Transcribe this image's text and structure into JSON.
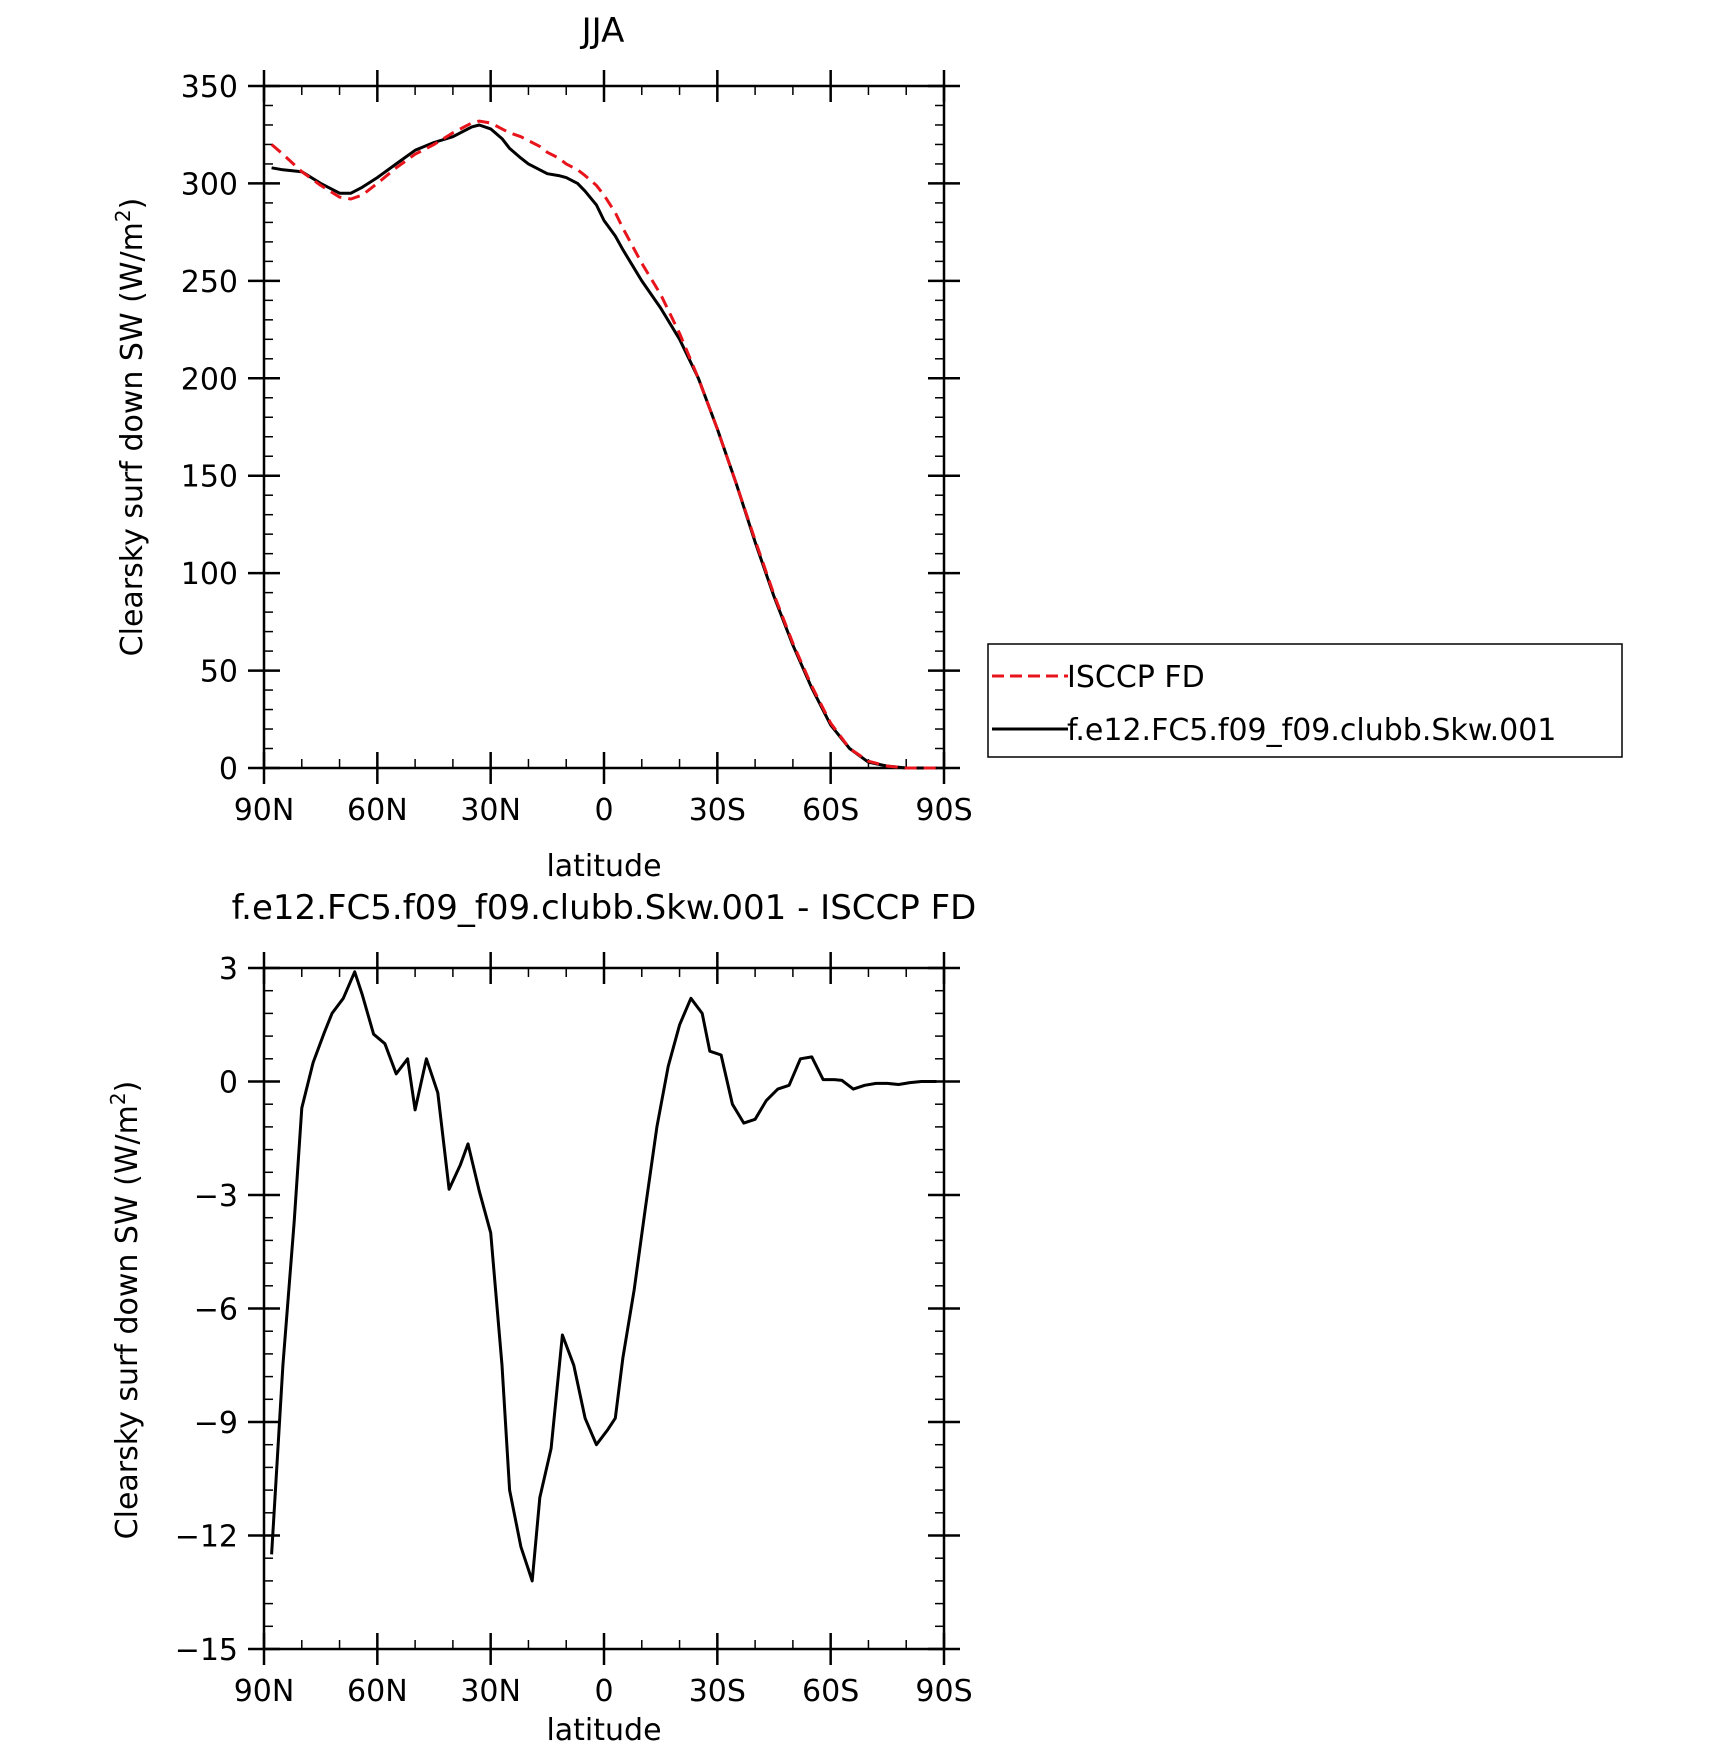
{
  "chart_data": [
    {
      "type": "line",
      "title": "JJA",
      "xlabel": "latitude",
      "ylabel": "Clearsky surf down SW (W/m²)",
      "ylabel_main": "Clearsky surf down SW (W/m",
      "ylabel_sup": "2",
      "ylabel_end": ")",
      "xlim": [
        90,
        -90
      ],
      "ylim": [
        0,
        350
      ],
      "xticks": [
        90,
        60,
        30,
        0,
        -30,
        -60,
        -90
      ],
      "xtick_labels": [
        "90N",
        "60N",
        "30N",
        "0",
        "30S",
        "60S",
        "90S"
      ],
      "yticks": [
        0,
        50,
        100,
        150,
        200,
        250,
        300,
        350
      ],
      "ytick_labels": [
        "0",
        "50",
        "100",
        "150",
        "200",
        "250",
        "300",
        "350"
      ],
      "legend": "right",
      "legend_entries": [
        "ISCCP FD",
        "f.e12.FC5.f09_f09.clubb.Skw.001"
      ],
      "series": [
        {
          "name": "ISCCP FD",
          "color": "#e8141b",
          "dash": true,
          "x": [
            88,
            85,
            80,
            75,
            70,
            67,
            64,
            60,
            55,
            50,
            45,
            40,
            35,
            33,
            30,
            27,
            25,
            22,
            20,
            17,
            15,
            12,
            10,
            7,
            5,
            2,
            0,
            -3,
            -5,
            -10,
            -15,
            -20,
            -25,
            -30,
            -35,
            -40,
            -45,
            -50,
            -55,
            -60,
            -65,
            -70,
            -75,
            -80,
            -85,
            -88
          ],
          "y": [
            320,
            315,
            306,
            299,
            293,
            292,
            294,
            300,
            308,
            315,
            320,
            326,
            331,
            332,
            331,
            328,
            326,
            324,
            322,
            319,
            316,
            313,
            310,
            307,
            304,
            299,
            294,
            285,
            277,
            259,
            243,
            223,
            200,
            174,
            146,
            117,
            89,
            64,
            42,
            23,
            10,
            3.5,
            1,
            0,
            0,
            0
          ]
        },
        {
          "name": "f.e12.FC5.f09_f09.clubb.Skw.001",
          "color": "#000000",
          "dash": false,
          "x": [
            88,
            85,
            80,
            75,
            70,
            67,
            64,
            60,
            55,
            50,
            45,
            40,
            35,
            33,
            30,
            27,
            25,
            22,
            20,
            17,
            15,
            12,
            10,
            7,
            5,
            2,
            0,
            -3,
            -5,
            -10,
            -15,
            -20,
            -25,
            -30,
            -35,
            -40,
            -45,
            -50,
            -55,
            -60,
            -65,
            -70,
            -75,
            -80,
            -85,
            -88
          ],
          "y": [
            308,
            307,
            306,
            300,
            295,
            295,
            298,
            303,
            310,
            317,
            321,
            324,
            329,
            330,
            328,
            323,
            318,
            313,
            310,
            307,
            305,
            304,
            303,
            300,
            296,
            289,
            281,
            273,
            266,
            250,
            236,
            220,
            200,
            174,
            146,
            116,
            88,
            63,
            41,
            22,
            10,
            3,
            1,
            0,
            0,
            0
          ]
        }
      ]
    },
    {
      "type": "line",
      "title": "f.e12.FC5.f09_f09.clubb.Skw.001 - ISCCP FD",
      "xlabel": "latitude",
      "ylabel": "Clearsky surf down SW (W/m²)",
      "ylabel_main": "Clearsky surf down SW (W/m",
      "ylabel_sup": "2",
      "ylabel_end": ")",
      "xlim": [
        90,
        -90
      ],
      "ylim": [
        -15,
        3
      ],
      "xticks": [
        90,
        60,
        30,
        0,
        -30,
        -60,
        -90
      ],
      "xtick_labels": [
        "90N",
        "60N",
        "30N",
        "0",
        "30S",
        "60S",
        "90S"
      ],
      "yticks": [
        -15,
        -12,
        -9,
        -6,
        -3,
        0,
        3
      ],
      "ytick_labels": [
        "−15",
        "−12",
        "−9",
        "−6",
        "−3",
        "0",
        "3"
      ],
      "series": [
        {
          "color": "#000000",
          "x": [
            88,
            85,
            82,
            80,
            77,
            74,
            72,
            69,
            66,
            64,
            61,
            58,
            55,
            52,
            50,
            47,
            44,
            41,
            38,
            36,
            33,
            30,
            27,
            25,
            22,
            19,
            17,
            14,
            11,
            8,
            5,
            2,
            -1,
            -3,
            -5,
            -8,
            -11,
            -14,
            -17,
            -20,
            -23,
            -26,
            -28,
            -31,
            -34,
            -37,
            -40,
            -43,
            -46,
            -49,
            -52,
            -55,
            -58,
            -61,
            -63,
            -66,
            -69,
            -72,
            -75,
            -78,
            -81,
            -84,
            -88
          ],
          "y": [
            -12.5,
            -7.5,
            -3.7,
            -0.7,
            0.5,
            1.3,
            1.8,
            2.2,
            2.9,
            2.3,
            1.25,
            1.0,
            0.2,
            0.6,
            -0.75,
            0.6,
            -0.3,
            -2.85,
            -2.2,
            -1.65,
            -2.9,
            -4.0,
            -7.5,
            -10.8,
            -12.3,
            -13.2,
            -11.0,
            -9.7,
            -6.7,
            -7.5,
            -8.9,
            -9.6,
            -9.2,
            -8.9,
            -7.3,
            -5.5,
            -3.3,
            -1.2,
            0.4,
            1.5,
            2.2,
            1.8,
            0.8,
            0.7,
            -0.6,
            -1.1,
            -1.0,
            -0.5,
            -0.2,
            -0.1,
            0.6,
            0.65,
            0.05,
            0.05,
            0.03,
            -0.2,
            -0.1,
            -0.05,
            -0.05,
            -0.08,
            -0.03,
            0.0,
            0.0
          ]
        }
      ]
    }
  ]
}
